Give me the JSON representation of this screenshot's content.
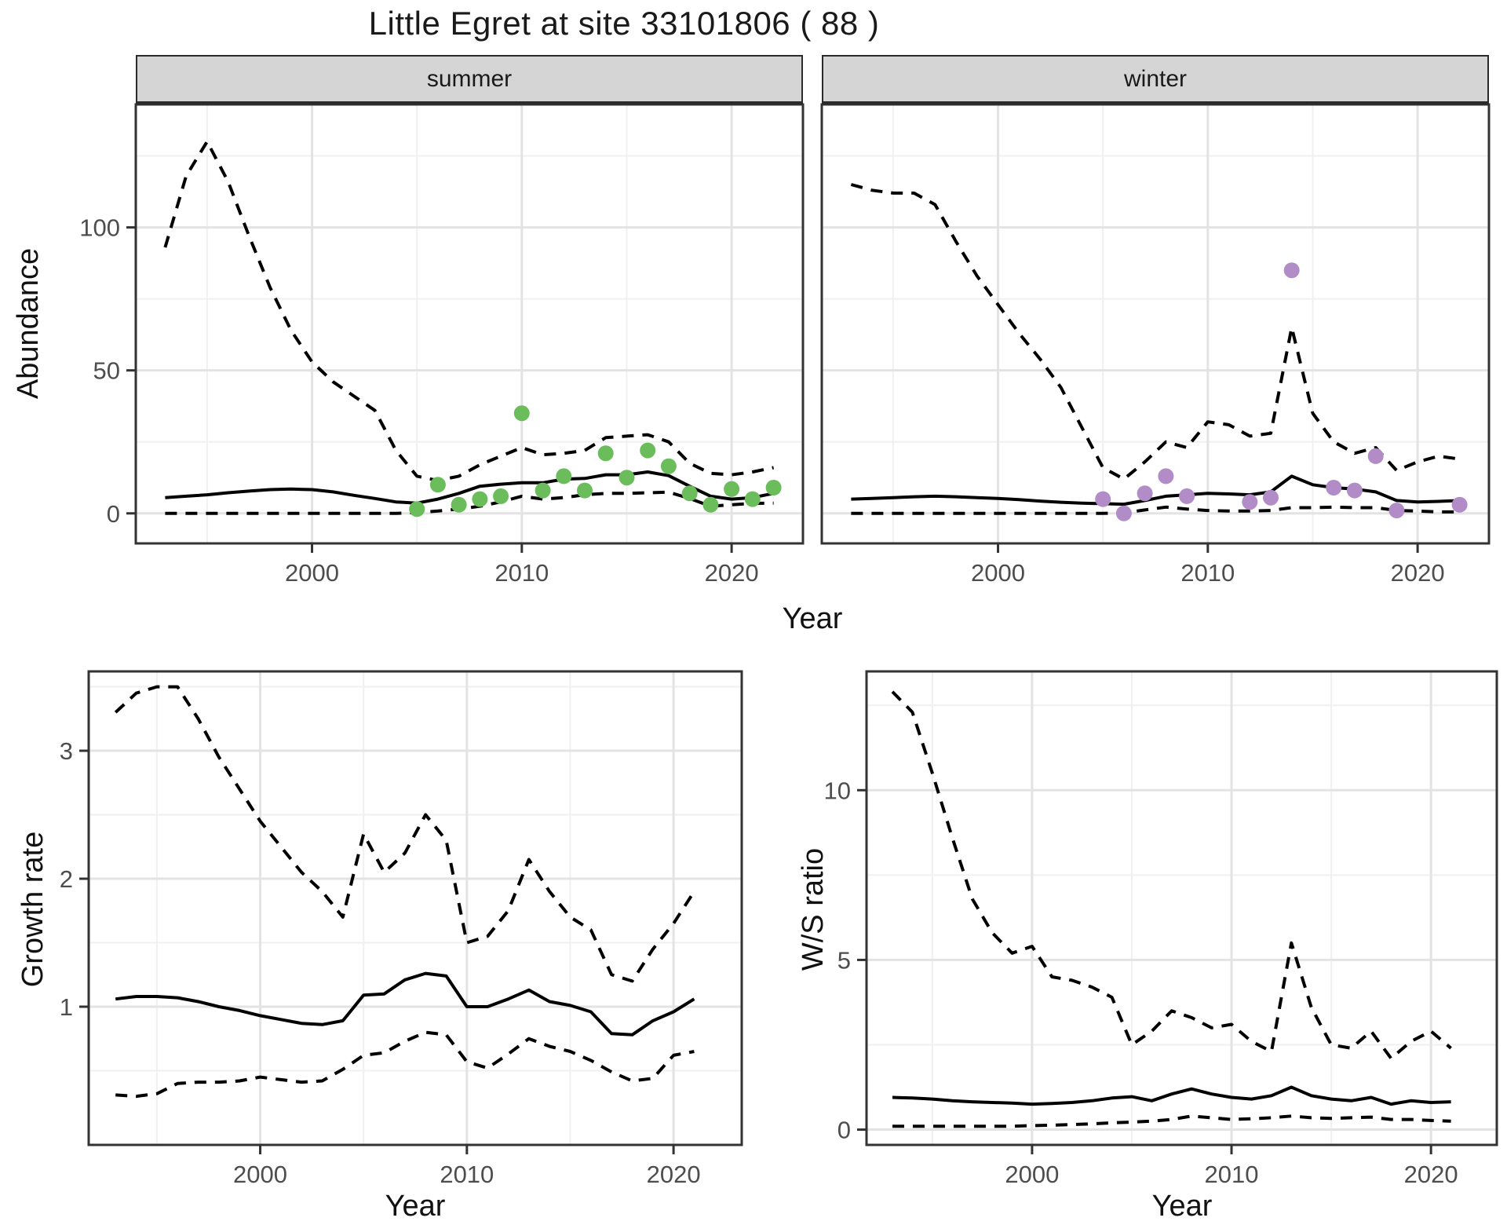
{
  "title": "Little Egret at site 33101806 ( 88 )",
  "top_row": {
    "ylabel": "Abundance",
    "xlabel": "Year"
  },
  "colors": {
    "summer_point": "#6abd5a",
    "winter_point": "#b28cc6",
    "line": "#000000",
    "strip_fill": "#d5d5d5",
    "grid_major": "#e3e3e3",
    "grid_minor": "#f0f0f0",
    "axis_text": "#4d4d4d",
    "panel_border": "#333333"
  },
  "chart_data": [
    {
      "type": "line",
      "facet_label": "summer",
      "xlabel": "Year",
      "ylabel": "Abundance",
      "xlim": [
        1991.6,
        2023.4
      ],
      "ylim": [
        -10.5,
        143
      ],
      "x_ticks": [
        2000,
        2010,
        2020
      ],
      "x_tick_labels": [
        "2000",
        "2010",
        "2020"
      ],
      "x_minor": [
        1995,
        2005,
        2015
      ],
      "y_ticks": [
        0,
        50,
        100
      ],
      "y_tick_labels": [
        "0",
        "50",
        "100"
      ],
      "y_minor": [
        25,
        75,
        125
      ],
      "x": [
        1993,
        1994,
        1995,
        1996,
        1997,
        1998,
        1999,
        2000,
        2001,
        2002,
        2003,
        2004,
        2005,
        2006,
        2007,
        2008,
        2009,
        2010,
        2011,
        2012,
        2013,
        2014,
        2015,
        2016,
        2017,
        2018,
        2019,
        2020,
        2021,
        2022
      ],
      "series": [
        {
          "name": "upper CI",
          "style": "dashed",
          "values": [
            93,
            118,
            130,
            116,
            97,
            79,
            64,
            53,
            46,
            41,
            36,
            22,
            13,
            11.5,
            13,
            17,
            20,
            23,
            20.5,
            21,
            22,
            26.5,
            27,
            27.5,
            25,
            17.5,
            14,
            13.5,
            14.5,
            16
          ]
        },
        {
          "name": "median",
          "style": "solid",
          "values": [
            5.5,
            6,
            6.5,
            7.2,
            7.8,
            8.3,
            8.5,
            8.3,
            7.5,
            6.3,
            5.2,
            4,
            3.6,
            5,
            7,
            9.5,
            10.2,
            10.7,
            10.7,
            12,
            12.2,
            13.5,
            13.5,
            14.5,
            13.2,
            9.5,
            6,
            5,
            5.5,
            7
          ]
        },
        {
          "name": "lower CI",
          "style": "dashed",
          "values": [
            0,
            0,
            0,
            0,
            0,
            0,
            0,
            0,
            0,
            0,
            0,
            0,
            0.3,
            0.8,
            1.5,
            2.5,
            4,
            6,
            5,
            5.5,
            6.5,
            7,
            7,
            7.2,
            7.4,
            5.2,
            2.5,
            3,
            3.5,
            3.6
          ]
        }
      ],
      "points": {
        "name": "summer observations",
        "color_key": "summer_point",
        "x": [
          2005,
          2006,
          2007,
          2008,
          2009,
          2010,
          2011,
          2012,
          2013,
          2014,
          2015,
          2016,
          2017,
          2018,
          2019,
          2020,
          2021,
          2022
        ],
        "y": [
          1.5,
          10,
          3,
          5,
          6,
          35,
          8,
          13,
          8,
          21,
          12.5,
          22,
          16.5,
          7,
          3,
          8.5,
          5,
          9
        ]
      }
    },
    {
      "type": "line",
      "facet_label": "winter",
      "xlabel": "Year",
      "ylabel": "Abundance",
      "xlim": [
        1991.6,
        2023.4
      ],
      "ylim": [
        -10.5,
        143
      ],
      "x_ticks": [
        2000,
        2010,
        2020
      ],
      "x_tick_labels": [
        "2000",
        "2010",
        "2020"
      ],
      "x_minor": [
        1995,
        2005,
        2015
      ],
      "y_ticks": [
        0,
        50,
        100
      ],
      "y_tick_labels": [],
      "y_minor": [
        25,
        75,
        125
      ],
      "x": [
        1993,
        1994,
        1995,
        1996,
        1997,
        1998,
        1999,
        2000,
        2001,
        2002,
        2003,
        2004,
        2005,
        2006,
        2007,
        2008,
        2009,
        2010,
        2011,
        2012,
        2013,
        2014,
        2015,
        2016,
        2017,
        2018,
        2019,
        2020,
        2021,
        2022
      ],
      "series": [
        {
          "name": "upper CI",
          "style": "dashed",
          "values": [
            115,
            113,
            112,
            112,
            108,
            95,
            83,
            73,
            63,
            54,
            44,
            30,
            16,
            12,
            18,
            25,
            23,
            32,
            31,
            27,
            28,
            65,
            35,
            25,
            21,
            23,
            15,
            18,
            20,
            19
          ]
        },
        {
          "name": "median",
          "style": "solid",
          "values": [
            5,
            5.2,
            5.5,
            5.8,
            6,
            5.8,
            5.5,
            5.2,
            4.8,
            4.3,
            3.9,
            3.6,
            3.4,
            3.2,
            4.5,
            6,
            6.5,
            7,
            6.8,
            6.5,
            7.5,
            13,
            10,
            9,
            8.5,
            7.5,
            4.5,
            4,
            4.2,
            4.5
          ]
        },
        {
          "name": "lower CI",
          "style": "dashed",
          "values": [
            0,
            0,
            0,
            0,
            0,
            0,
            0,
            0,
            0,
            0,
            0,
            0,
            0,
            0.2,
            1.2,
            2.2,
            1.5,
            1,
            0.8,
            0.8,
            1,
            2,
            2,
            2.2,
            2,
            2,
            1,
            0.8,
            0.5,
            0.5
          ]
        }
      ],
      "points": {
        "name": "winter observations",
        "color_key": "winter_point",
        "x": [
          2005,
          2006,
          2007,
          2008,
          2009,
          2012,
          2013,
          2014,
          2016,
          2017,
          2018,
          2019,
          2022
        ],
        "y": [
          5,
          0,
          7,
          13,
          6,
          4,
          5.5,
          85,
          9,
          8,
          20,
          1,
          3
        ]
      }
    },
    {
      "type": "line",
      "facet_label": "",
      "xlabel": "Year",
      "ylabel": "Growth rate",
      "xlim": [
        1991.7,
        2023.3
      ],
      "ylim": [
        -0.08,
        3.62
      ],
      "x_ticks": [
        2000,
        2010,
        2020
      ],
      "x_tick_labels": [
        "2000",
        "2010",
        "2020"
      ],
      "x_minor": [
        1995,
        2005,
        2015
      ],
      "y_ticks": [
        1,
        2,
        3
      ],
      "y_tick_labels": [
        "1",
        "2",
        "3"
      ],
      "y_minor": [
        0.5,
        1.5,
        2.5,
        3.5
      ],
      "x": [
        1993,
        1994,
        1995,
        1996,
        1997,
        1998,
        1999,
        2000,
        2001,
        2002,
        2003,
        2004,
        2005,
        2006,
        2007,
        2008,
        2009,
        2010,
        2011,
        2012,
        2013,
        2014,
        2015,
        2016,
        2017,
        2018,
        2019,
        2020,
        2021
      ],
      "series": [
        {
          "name": "upper CI",
          "style": "dashed",
          "values": [
            3.3,
            3.45,
            3.5,
            3.5,
            3.25,
            2.95,
            2.7,
            2.45,
            2.25,
            2.05,
            1.9,
            1.7,
            2.35,
            2.05,
            2.2,
            2.5,
            2.3,
            1.5,
            1.55,
            1.75,
            2.15,
            1.9,
            1.7,
            1.6,
            1.25,
            1.2,
            1.45,
            1.65,
            1.9
          ]
        },
        {
          "name": "median",
          "style": "solid",
          "values": [
            1.06,
            1.08,
            1.08,
            1.07,
            1.04,
            1.0,
            0.97,
            0.93,
            0.9,
            0.87,
            0.86,
            0.89,
            1.09,
            1.1,
            1.21,
            1.26,
            1.24,
            1.0,
            1.0,
            1.06,
            1.13,
            1.04,
            1.01,
            0.96,
            0.79,
            0.78,
            0.89,
            0.96,
            1.06
          ]
        },
        {
          "name": "lower CI",
          "style": "dashed",
          "values": [
            0.31,
            0.3,
            0.32,
            0.4,
            0.41,
            0.41,
            0.42,
            0.45,
            0.43,
            0.41,
            0.42,
            0.51,
            0.62,
            0.64,
            0.73,
            0.8,
            0.78,
            0.57,
            0.52,
            0.63,
            0.75,
            0.69,
            0.65,
            0.58,
            0.49,
            0.42,
            0.44,
            0.62,
            0.65
          ]
        }
      ],
      "points": null
    },
    {
      "type": "line",
      "facet_label": "",
      "xlabel": "Year",
      "ylabel": "W/S ratio",
      "xlim": [
        1991.7,
        2023.3
      ],
      "ylim": [
        -0.45,
        13.5
      ],
      "x_ticks": [
        2000,
        2010,
        2020
      ],
      "x_tick_labels": [
        "2000",
        "2010",
        "2020"
      ],
      "x_minor": [
        1995,
        2005,
        2015
      ],
      "y_ticks": [
        0,
        5,
        10
      ],
      "y_tick_labels": [
        "0",
        "5",
        "10"
      ],
      "y_minor": [
        2.5,
        7.5,
        12.5
      ],
      "x": [
        1993,
        1994,
        1995,
        1996,
        1997,
        1998,
        1999,
        2000,
        2001,
        2002,
        2003,
        2004,
        2005,
        2006,
        2007,
        2008,
        2009,
        2010,
        2011,
        2012,
        2013,
        2014,
        2015,
        2016,
        2017,
        2018,
        2019,
        2020,
        2021
      ],
      "series": [
        {
          "name": "upper CI",
          "style": "dashed",
          "values": [
            12.9,
            12.3,
            10.5,
            8.6,
            6.8,
            5.8,
            5.2,
            5.4,
            4.5,
            4.4,
            4.2,
            3.9,
            2.5,
            2.9,
            3.5,
            3.3,
            3.0,
            3.1,
            2.6,
            2.3,
            5.5,
            3.6,
            2.5,
            2.4,
            2.9,
            2.1,
            2.6,
            2.9,
            2.4
          ]
        },
        {
          "name": "median",
          "style": "solid",
          "values": [
            0.95,
            0.93,
            0.9,
            0.85,
            0.82,
            0.8,
            0.78,
            0.75,
            0.77,
            0.8,
            0.85,
            0.93,
            0.97,
            0.85,
            1.05,
            1.2,
            1.05,
            0.95,
            0.9,
            1.0,
            1.25,
            1.0,
            0.9,
            0.85,
            0.95,
            0.75,
            0.85,
            0.8,
            0.82
          ]
        },
        {
          "name": "lower CI",
          "style": "dashed",
          "values": [
            0.1,
            0.1,
            0.1,
            0.1,
            0.1,
            0.1,
            0.1,
            0.12,
            0.13,
            0.15,
            0.17,
            0.2,
            0.22,
            0.25,
            0.3,
            0.4,
            0.35,
            0.3,
            0.32,
            0.35,
            0.4,
            0.35,
            0.33,
            0.35,
            0.37,
            0.3,
            0.3,
            0.27,
            0.25
          ]
        }
      ],
      "points": null
    }
  ]
}
